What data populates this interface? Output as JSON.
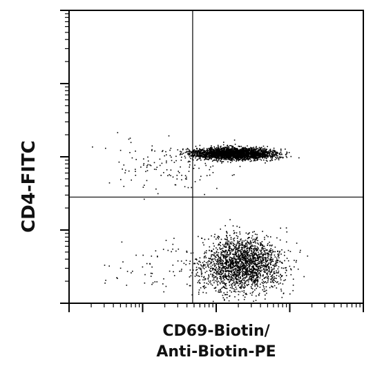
{
  "chart_data": {
    "type": "scatter",
    "scale": "log",
    "xlabel_lines": [
      "CD69-Biotin/",
      "Anti-Biotin-PE"
    ],
    "ylabel": "CD4-FITC",
    "xlim_decades": [
      0,
      4
    ],
    "ylim_decades": [
      0,
      4
    ],
    "quadrant_gate": {
      "x_decades": 1.68,
      "y_decades": 1.45
    },
    "grid": false,
    "populations": [
      {
        "label": "",
        "center_decades": [
          2.25,
          2.05
        ],
        "spread_decades": [
          0.55,
          0.08
        ],
        "count": 2600
      },
      {
        "label": "",
        "center_decades": [
          2.35,
          0.55
        ],
        "spread_decades": [
          0.55,
          0.38
        ],
        "count": 2000
      },
      {
        "label": "",
        "center_decades": [
          1.4,
          1.9
        ],
        "spread_decades": [
          0.9,
          0.35
        ],
        "count": 140
      },
      {
        "label": "",
        "center_decades": [
          1.5,
          0.5
        ],
        "spread_decades": [
          1.0,
          0.4
        ],
        "count": 90
      }
    ],
    "colors": {
      "points": "#000000",
      "axes": "#000000",
      "gate": "#000000"
    }
  }
}
